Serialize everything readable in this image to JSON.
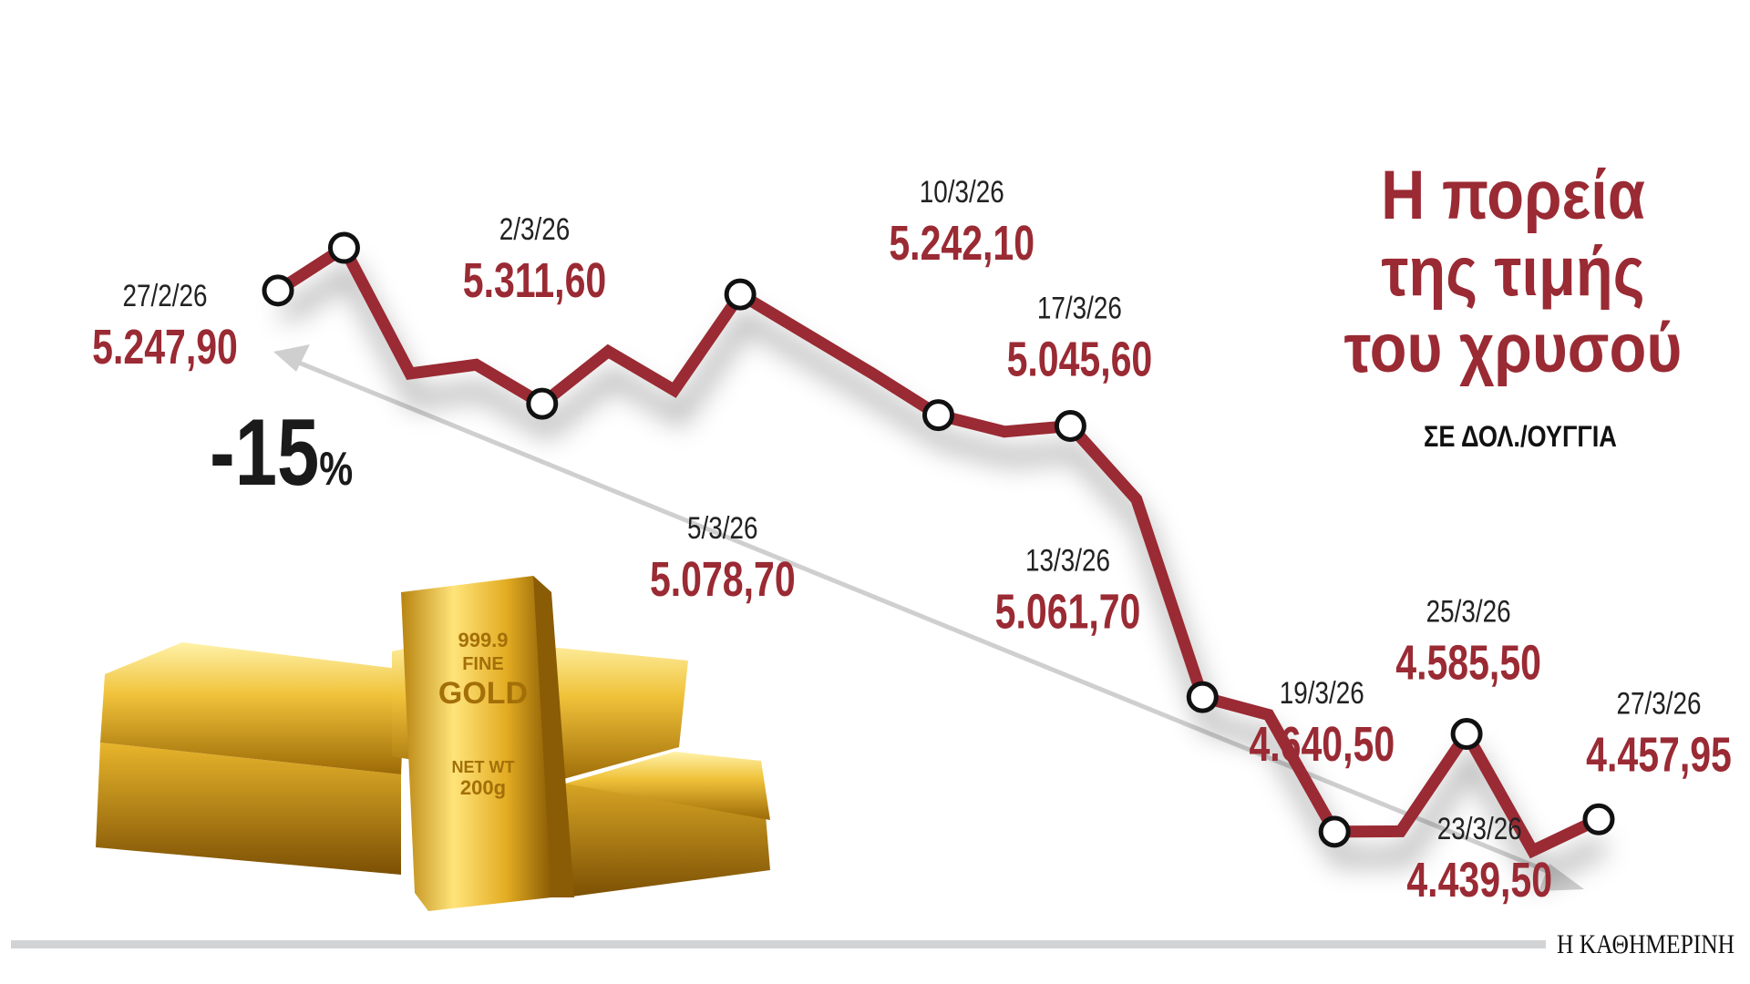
{
  "title": "Η πορεία της τιμής του χρυσού",
  "subtitle": "ΣΕ ΔΟΛ./ΟΥΓΓΙΑ",
  "trend_label": {
    "value": "-15",
    "unit": "%"
  },
  "source_logo": "Η ΚΑΘΗΜΕΡΙΝΗ",
  "gold_bar_engraving": [
    "999.9",
    "FINE",
    "GOLD",
    "NET WT",
    "200g"
  ],
  "colors": {
    "line": "#9a2a33",
    "value_text": "#9a2a33",
    "trend_arrow": "#cfcfcf",
    "marker_fill": "#ffffff",
    "marker_stroke": "#111111"
  },
  "chart_data": {
    "type": "line",
    "title": "Η πορεία της τιμής του χρυσού",
    "ylabel": "ΣΕ ΔΟΛ./ΟΥΓΓΙΑ",
    "grid": false,
    "legend": "none",
    "points": [
      {
        "date": "27/2/26",
        "value": 5247.9,
        "label": "5.247,90",
        "marker": true
      },
      {
        "date": "2/3/26",
        "value": 5311.6,
        "label": "5.311,60",
        "marker": true
      },
      {
        "date": null,
        "value": 5124,
        "label": null,
        "marker": false
      },
      {
        "date": null,
        "value": 5137,
        "label": null,
        "marker": false
      },
      {
        "date": "5/3/26",
        "value": 5078.7,
        "label": "5.078,70",
        "marker": true
      },
      {
        "date": null,
        "value": 5157,
        "label": null,
        "marker": false
      },
      {
        "date": null,
        "value": 5099,
        "label": null,
        "marker": false
      },
      {
        "date": "10/3/26",
        "value": 5242.1,
        "label": "5.242,10",
        "marker": true
      },
      {
        "date": null,
        "value": 5183,
        "label": null,
        "marker": false
      },
      {
        "date": null,
        "value": 5124,
        "label": null,
        "marker": false
      },
      {
        "date": "13/3/26",
        "value": 5061.7,
        "label": "5.061,70",
        "marker": true
      },
      {
        "date": null,
        "value": 5037,
        "label": null,
        "marker": false
      },
      {
        "date": "17/3/26",
        "value": 5045.6,
        "label": "5.045,60",
        "marker": true
      },
      {
        "date": null,
        "value": 4936,
        "label": null,
        "marker": false
      },
      {
        "date": "19/3/26",
        "value": 4640.5,
        "label": "4.640,50",
        "marker": true
      },
      {
        "date": null,
        "value": 4614,
        "label": null,
        "marker": false
      },
      {
        "date": "23/3/26",
        "value": 4439.5,
        "label": "4.439,50",
        "marker": true
      },
      {
        "date": null,
        "value": 4440,
        "label": null,
        "marker": false
      },
      {
        "date": "25/3/26",
        "value": 4585.5,
        "label": "4.585,50",
        "marker": true
      },
      {
        "date": null,
        "value": 4411,
        "label": null,
        "marker": false
      },
      {
        "date": "27/3/26",
        "value": 4457.95,
        "label": "4.457,95",
        "marker": true
      }
    ],
    "change_percent": -15
  }
}
